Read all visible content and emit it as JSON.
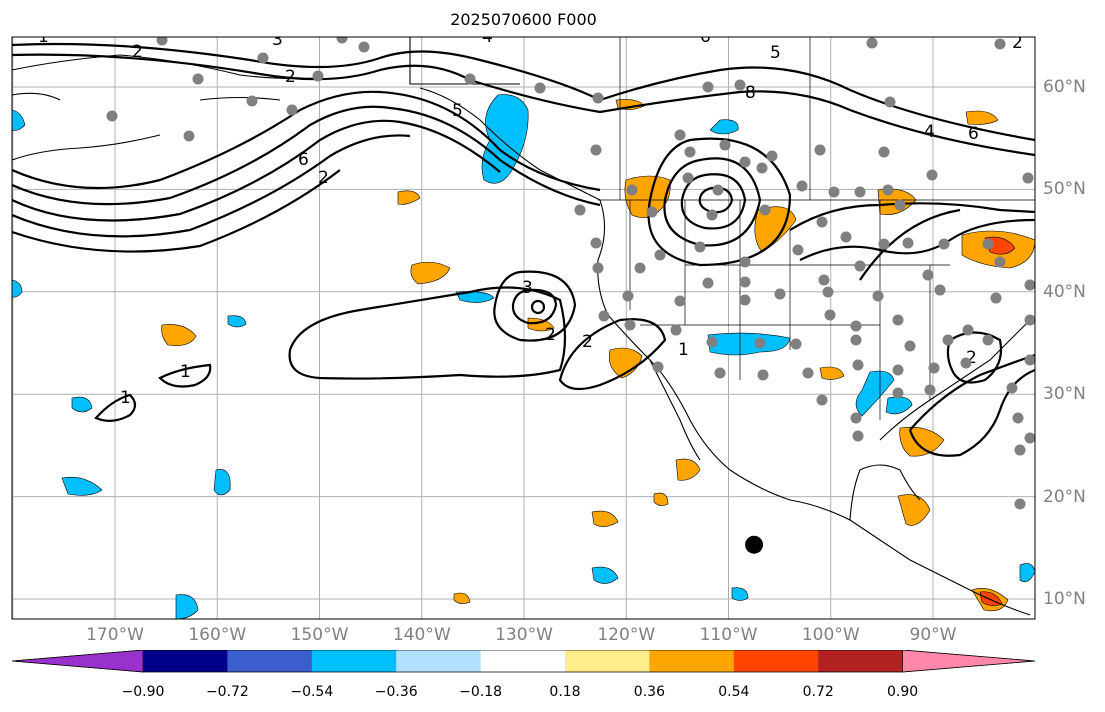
{
  "title": "2025070600 F000",
  "lon_labels": [
    {
      "text": "170°W",
      "lon": -170
    },
    {
      "text": "160°W",
      "lon": -160
    },
    {
      "text": "150°W",
      "lon": -150
    },
    {
      "text": "140°W",
      "lon": -140
    },
    {
      "text": "130°W",
      "lon": -130
    },
    {
      "text": "120°W",
      "lon": -120
    },
    {
      "text": "110°W",
      "lon": -110
    },
    {
      "text": "100°W",
      "lon": -100
    },
    {
      "text": "90°W",
      "lon": -90
    }
  ],
  "lat_labels": [
    {
      "text": "60°N",
      "lat": 60
    },
    {
      "text": "50°N",
      "lat": 50
    },
    {
      "text": "40°N",
      "lat": 40
    },
    {
      "text": "30°N",
      "lat": 30
    },
    {
      "text": "20°N",
      "lat": 20
    },
    {
      "text": "10°N",
      "lat": 10
    }
  ],
  "colorbar": {
    "ticks": [
      "−0.90",
      "−0.72",
      "−0.54",
      "−0.36",
      "−0.18",
      "0.18",
      "0.36",
      "0.54",
      "0.72",
      "0.90"
    ],
    "colors": [
      "#9932cc",
      "#00008b",
      "#3a5fcd",
      "#00bfff",
      "#b0e2ff",
      "#ffffff",
      "#ffec8b",
      "#ffa500",
      "#ff4500",
      "#b22222",
      "#ff88aa"
    ]
  },
  "contour_labels": [
    "1",
    "2",
    "3",
    "4",
    "5",
    "6",
    "8",
    "2",
    "3",
    "2",
    "2",
    "1",
    "1",
    "2",
    "4",
    "6",
    "5",
    "2",
    "6",
    "1",
    "2"
  ],
  "marker": {
    "lon": -107.5,
    "lat": 15.3
  }
}
